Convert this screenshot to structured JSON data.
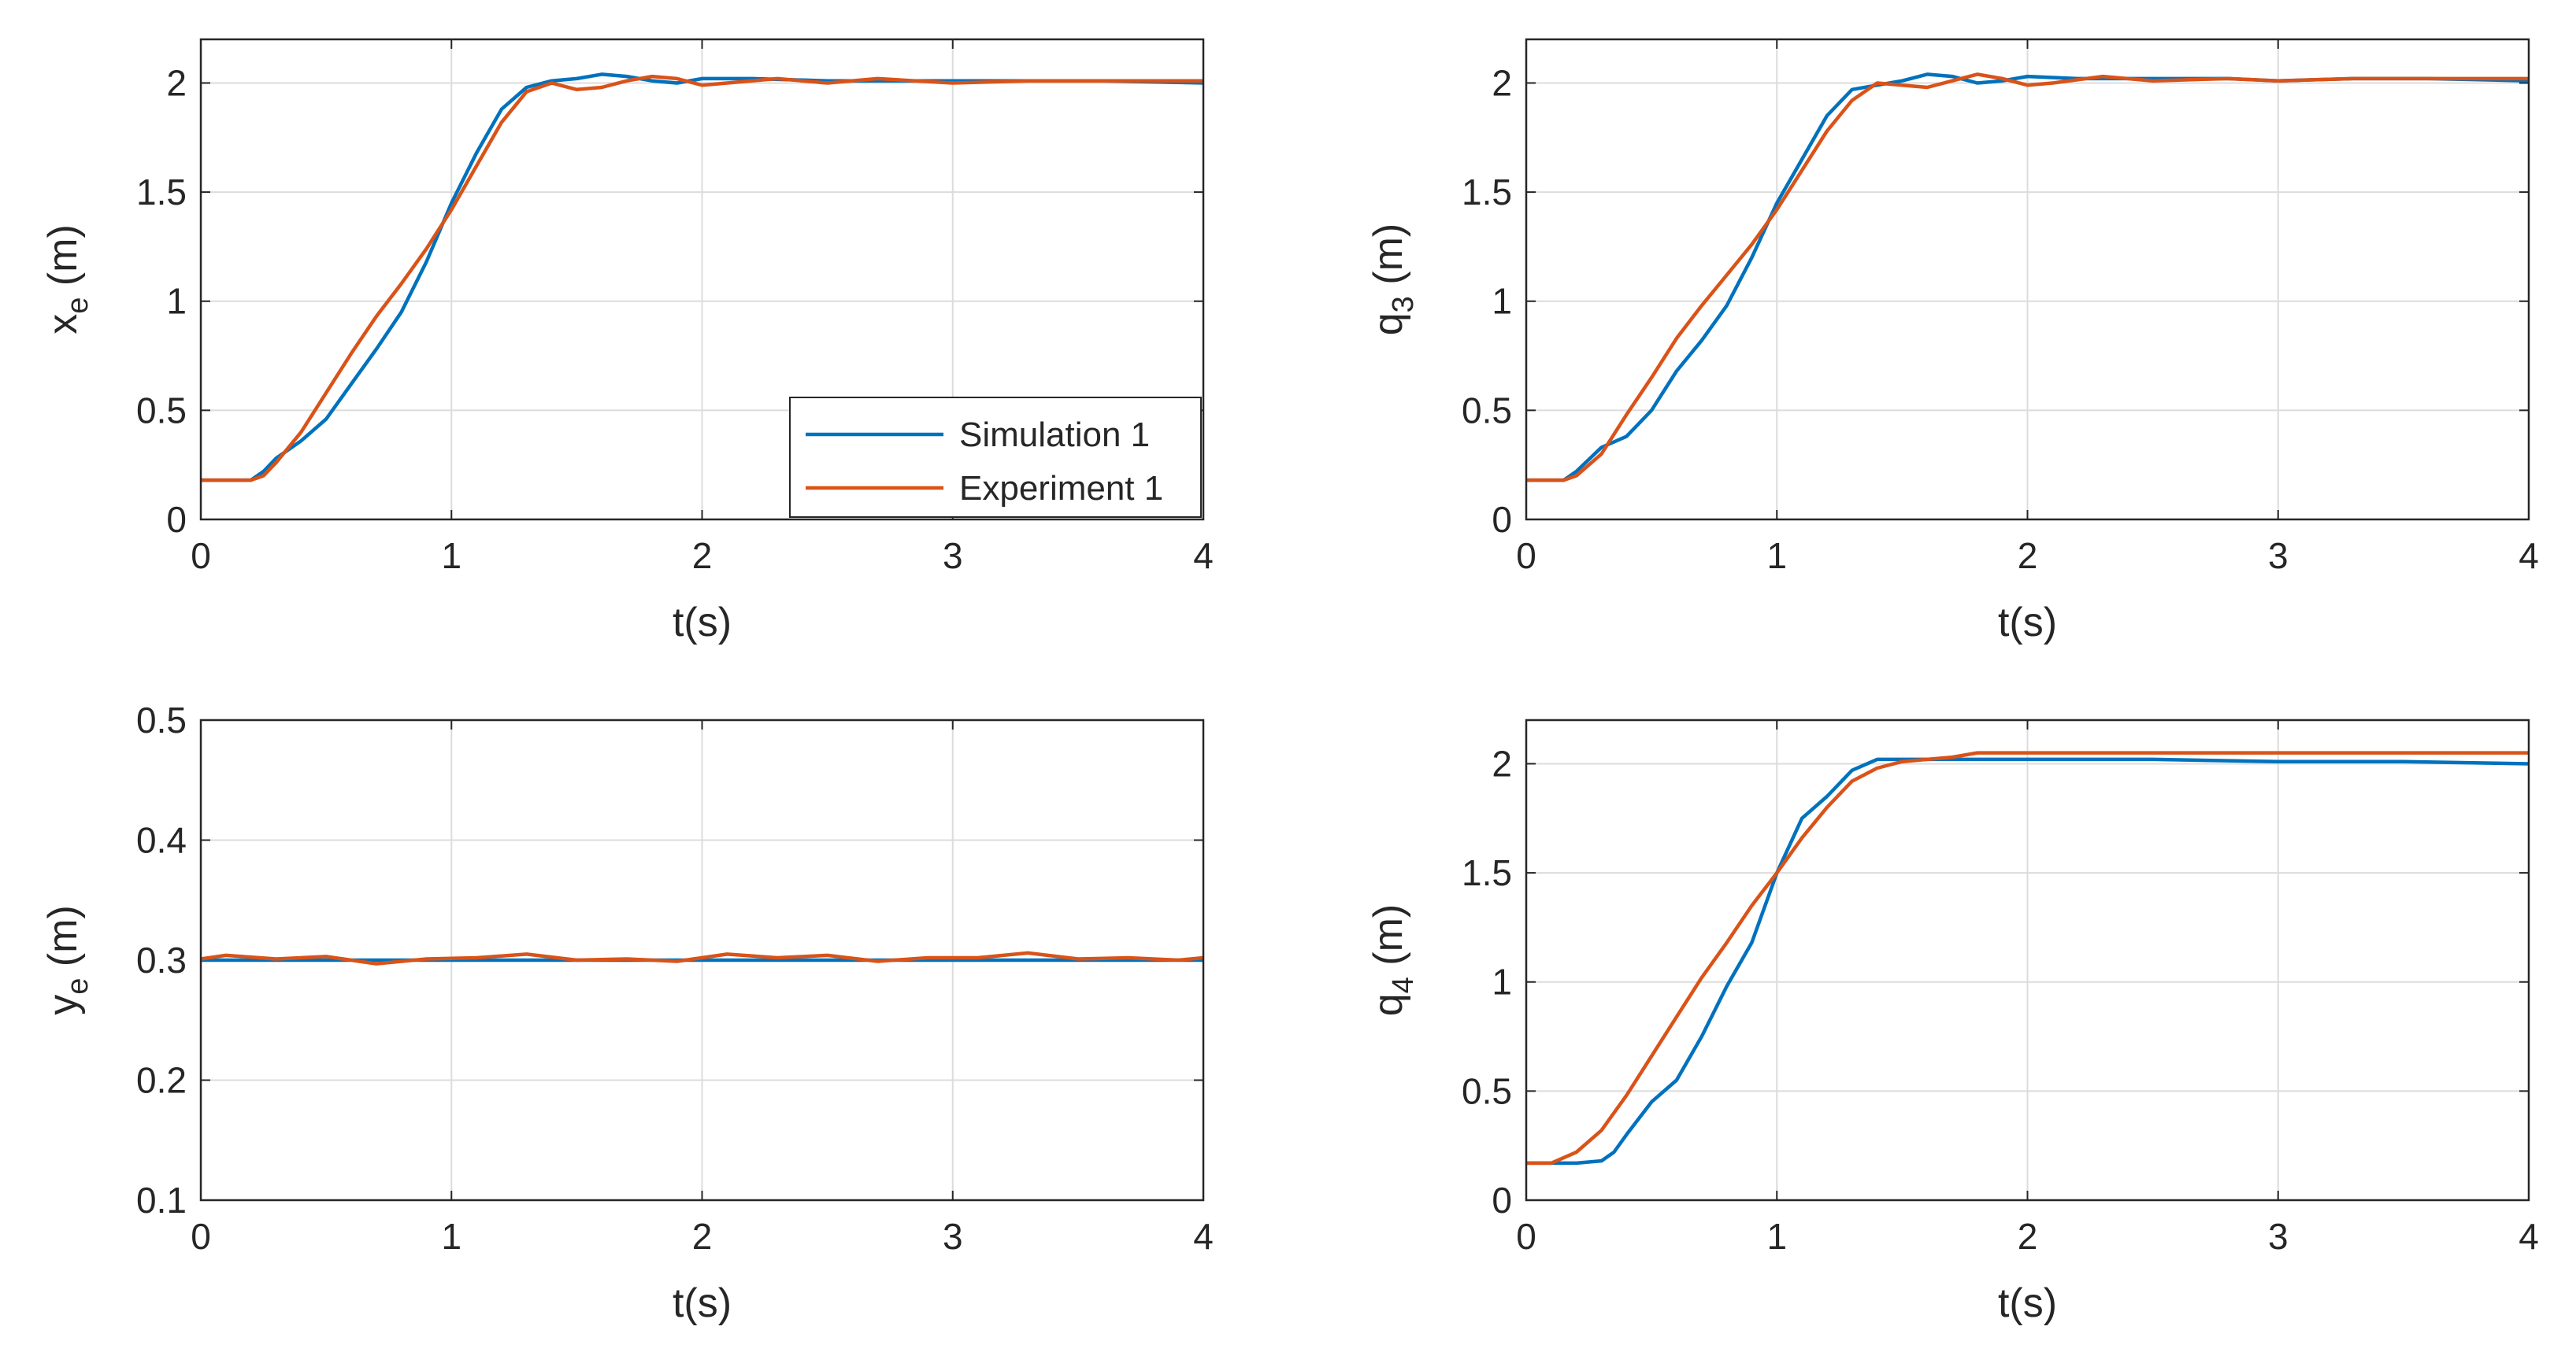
{
  "colors": {
    "simulation": "#0072BD",
    "experiment": "#D95319",
    "grid": "#dcdcdc",
    "axis": "#262626"
  },
  "chart_data": [
    {
      "id": "xe",
      "type": "line",
      "xlabel": "t(s)",
      "ylabel": {
        "main": "x",
        "sub": "e",
        "unit": " (m)"
      },
      "xlim": [
        0,
        4
      ],
      "ylim": [
        0,
        2.2
      ],
      "xticks": [
        0,
        1,
        2,
        3,
        4
      ],
      "xtick_labels": [
        "0",
        "1",
        "2",
        "3",
        "4"
      ],
      "yticks": [
        0,
        0.5,
        1,
        1.5,
        2
      ],
      "ytick_labels": [
        "0",
        "0.5",
        "1",
        "1.5",
        "2"
      ],
      "grid": true,
      "legend": {
        "position": "bottom-right",
        "entries": [
          "Simulation 1",
          "Experiment 1"
        ]
      },
      "series": [
        {
          "name": "Simulation 1",
          "color_key": "simulation",
          "x": [
            0,
            0.2,
            0.25,
            0.3,
            0.4,
            0.5,
            0.6,
            0.7,
            0.8,
            0.9,
            1.0,
            1.1,
            1.2,
            1.3,
            1.4,
            1.5,
            1.6,
            1.7,
            1.8,
            1.9,
            2.0,
            2.2,
            2.5,
            2.8,
            3.0,
            3.3,
            3.6,
            4.0
          ],
          "y": [
            0.18,
            0.18,
            0.22,
            0.28,
            0.36,
            0.46,
            0.62,
            0.78,
            0.95,
            1.18,
            1.45,
            1.68,
            1.88,
            1.98,
            2.01,
            2.02,
            2.04,
            2.03,
            2.01,
            2.0,
            2.02,
            2.02,
            2.01,
            2.01,
            2.01,
            2.01,
            2.01,
            2.0
          ]
        },
        {
          "name": "Experiment 1",
          "color_key": "experiment",
          "x": [
            0,
            0.2,
            0.25,
            0.3,
            0.4,
            0.5,
            0.6,
            0.7,
            0.8,
            0.9,
            1.0,
            1.1,
            1.2,
            1.3,
            1.4,
            1.5,
            1.6,
            1.7,
            1.8,
            1.9,
            2.0,
            2.1,
            2.3,
            2.5,
            2.7,
            3.0,
            3.3,
            3.6,
            4.0
          ],
          "y": [
            0.18,
            0.18,
            0.2,
            0.26,
            0.4,
            0.58,
            0.76,
            0.93,
            1.08,
            1.24,
            1.42,
            1.62,
            1.82,
            1.96,
            2.0,
            1.97,
            1.98,
            2.01,
            2.03,
            2.02,
            1.99,
            2.0,
            2.02,
            2.0,
            2.02,
            2.0,
            2.01,
            2.01,
            2.01
          ]
        }
      ]
    },
    {
      "id": "q3",
      "type": "line",
      "xlabel": "t(s)",
      "ylabel": {
        "main": "q",
        "sub": "3",
        "unit": " (m)"
      },
      "xlim": [
        0,
        4
      ],
      "ylim": [
        0,
        2.2
      ],
      "xticks": [
        0,
        1,
        2,
        3,
        4
      ],
      "xtick_labels": [
        "0",
        "1",
        "2",
        "3",
        "4"
      ],
      "yticks": [
        0,
        0.5,
        1,
        1.5,
        2
      ],
      "ytick_labels": [
        "0",
        "0.5",
        "1",
        "1.5",
        "2"
      ],
      "grid": true,
      "series": [
        {
          "name": "Simulation 1",
          "color_key": "simulation",
          "x": [
            0,
            0.15,
            0.2,
            0.3,
            0.4,
            0.5,
            0.6,
            0.7,
            0.8,
            0.9,
            1.0,
            1.1,
            1.2,
            1.3,
            1.4,
            1.5,
            1.6,
            1.7,
            1.8,
            1.9,
            2.0,
            2.2,
            2.5,
            2.8,
            3.0,
            3.3,
            3.6,
            4.0
          ],
          "y": [
            0.18,
            0.18,
            0.22,
            0.33,
            0.38,
            0.5,
            0.68,
            0.82,
            0.98,
            1.2,
            1.45,
            1.65,
            1.85,
            1.97,
            1.99,
            2.01,
            2.04,
            2.03,
            2.0,
            2.01,
            2.03,
            2.02,
            2.02,
            2.02,
            2.01,
            2.02,
            2.02,
            2.01
          ]
        },
        {
          "name": "Experiment 1",
          "color_key": "experiment",
          "x": [
            0,
            0.15,
            0.2,
            0.3,
            0.4,
            0.5,
            0.6,
            0.7,
            0.8,
            0.9,
            1.0,
            1.1,
            1.2,
            1.3,
            1.4,
            1.5,
            1.6,
            1.7,
            1.8,
            1.9,
            2.0,
            2.1,
            2.3,
            2.5,
            2.8,
            3.0,
            3.3,
            3.6,
            4.0
          ],
          "y": [
            0.18,
            0.18,
            0.2,
            0.3,
            0.48,
            0.65,
            0.83,
            0.98,
            1.12,
            1.26,
            1.42,
            1.6,
            1.78,
            1.92,
            2.0,
            1.99,
            1.98,
            2.01,
            2.04,
            2.02,
            1.99,
            2.0,
            2.03,
            2.01,
            2.02,
            2.01,
            2.02,
            2.02,
            2.02
          ]
        }
      ]
    },
    {
      "id": "ye",
      "type": "line",
      "xlabel": "t(s)",
      "ylabel": {
        "main": "y",
        "sub": "e",
        "unit": " (m)"
      },
      "xlim": [
        0,
        4
      ],
      "ylim": [
        0.1,
        0.5
      ],
      "xticks": [
        0,
        1,
        2,
        3,
        4
      ],
      "xtick_labels": [
        "0",
        "1",
        "2",
        "3",
        "4"
      ],
      "yticks": [
        0.1,
        0.2,
        0.3,
        0.4,
        0.5
      ],
      "ytick_labels": [
        "0.1",
        "0.2",
        "0.3",
        "0.4",
        "0.5"
      ],
      "grid": true,
      "series": [
        {
          "name": "Simulation 1",
          "color_key": "simulation",
          "x": [
            0,
            4
          ],
          "y": [
            0.3,
            0.3
          ]
        },
        {
          "name": "Experiment 1",
          "color_key": "experiment",
          "x": [
            0,
            0.1,
            0.3,
            0.5,
            0.7,
            0.9,
            1.1,
            1.3,
            1.5,
            1.7,
            1.9,
            2.1,
            2.3,
            2.5,
            2.7,
            2.9,
            3.1,
            3.3,
            3.5,
            3.7,
            3.9,
            4.0
          ],
          "y": [
            0.301,
            0.304,
            0.301,
            0.303,
            0.297,
            0.301,
            0.302,
            0.305,
            0.3,
            0.301,
            0.299,
            0.305,
            0.302,
            0.304,
            0.299,
            0.302,
            0.302,
            0.306,
            0.301,
            0.302,
            0.3,
            0.302
          ]
        }
      ]
    },
    {
      "id": "q4",
      "type": "line",
      "xlabel": "t(s)",
      "ylabel": {
        "main": "q",
        "sub": "4",
        "unit": " (m)"
      },
      "xlim": [
        0,
        4
      ],
      "ylim": [
        0,
        2.2
      ],
      "xticks": [
        0,
        1,
        2,
        3,
        4
      ],
      "xtick_labels": [
        "0",
        "1",
        "2",
        "3",
        "4"
      ],
      "yticks": [
        0,
        0.5,
        1,
        1.5,
        2
      ],
      "ytick_labels": [
        "0",
        "0.5",
        "1",
        "1.5",
        "2"
      ],
      "grid": true,
      "series": [
        {
          "name": "Simulation 1",
          "color_key": "simulation",
          "x": [
            0,
            0.2,
            0.3,
            0.35,
            0.4,
            0.5,
            0.6,
            0.7,
            0.8,
            0.9,
            1.0,
            1.1,
            1.2,
            1.3,
            1.4,
            1.5,
            1.6,
            2.0,
            2.5,
            3.0,
            3.5,
            4.0
          ],
          "y": [
            0.17,
            0.17,
            0.18,
            0.22,
            0.3,
            0.45,
            0.55,
            0.75,
            0.98,
            1.18,
            1.5,
            1.75,
            1.85,
            1.97,
            2.02,
            2.02,
            2.02,
            2.02,
            2.02,
            2.01,
            2.01,
            2.0
          ]
        },
        {
          "name": "Experiment 1",
          "color_key": "experiment",
          "x": [
            0,
            0.1,
            0.2,
            0.3,
            0.4,
            0.5,
            0.6,
            0.7,
            0.8,
            0.9,
            1.0,
            1.1,
            1.2,
            1.3,
            1.4,
            1.5,
            1.6,
            1.7,
            1.8,
            2.0,
            3.0,
            4.0
          ],
          "y": [
            0.17,
            0.17,
            0.22,
            0.32,
            0.48,
            0.66,
            0.84,
            1.02,
            1.18,
            1.35,
            1.5,
            1.66,
            1.8,
            1.92,
            1.98,
            2.01,
            2.02,
            2.03,
            2.05,
            2.05,
            2.05,
            2.05
          ]
        }
      ]
    }
  ]
}
